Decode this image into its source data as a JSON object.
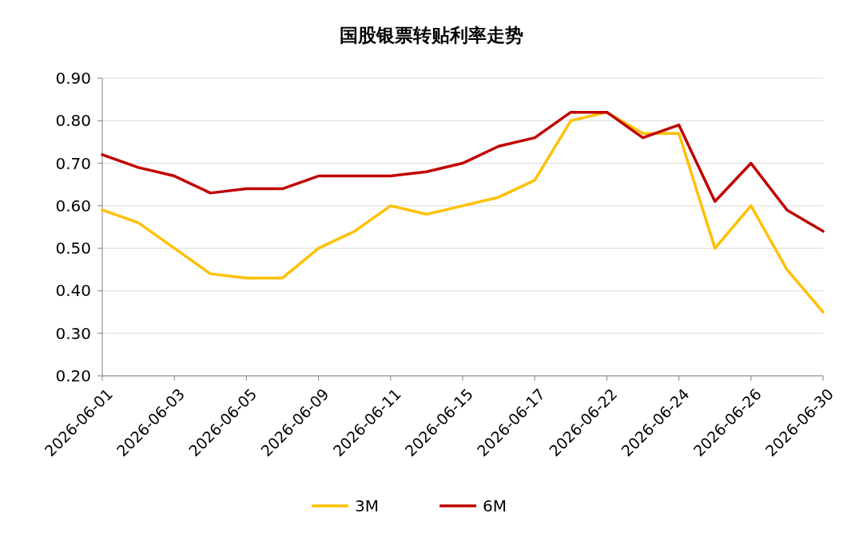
{
  "chart_data": {
    "type": "line",
    "title": "国股银票转贴利率走势",
    "categories": [
      "2026-06-01",
      null,
      "2026-06-03",
      null,
      "2026-06-05",
      null,
      "2026-06-09",
      null,
      "2026-06-11",
      null,
      "2026-06-15",
      null,
      "2026-06-17",
      null,
      "2026-06-22",
      null,
      "2026-06-24",
      null,
      "2026-06-26",
      null,
      "2026-06-30"
    ],
    "series": [
      {
        "name": "3M",
        "color": "#ffc000",
        "values": [
          0.59,
          0.56,
          0.5,
          0.44,
          0.43,
          0.43,
          0.5,
          0.54,
          0.6,
          0.58,
          0.6,
          0.62,
          0.66,
          0.8,
          0.82,
          0.77,
          0.77,
          0.5,
          0.6,
          0.45,
          0.35
        ]
      },
      {
        "name": "6M",
        "color": "#c00000",
        "values": [
          0.72,
          0.69,
          0.67,
          0.63,
          0.64,
          0.64,
          0.67,
          0.67,
          0.67,
          0.68,
          0.7,
          0.74,
          0.76,
          0.82,
          0.82,
          0.76,
          0.79,
          0.61,
          0.7,
          0.59,
          0.54
        ]
      }
    ],
    "ylim": [
      0.2,
      0.9
    ],
    "yticks": [
      {
        "value": 0.2,
        "label": "0.20"
      },
      {
        "value": 0.3,
        "label": "0.30"
      },
      {
        "value": 0.4,
        "label": "0.40"
      },
      {
        "value": 0.5,
        "label": "0.50"
      },
      {
        "value": 0.6,
        "label": "0.60"
      },
      {
        "value": 0.7,
        "label": "0.70"
      },
      {
        "value": 0.8,
        "label": "0.80"
      },
      {
        "value": 0.9,
        "label": "0.90"
      }
    ],
    "grid": "y",
    "legend": "bottom",
    "marker": "none",
    "line_style": "solid"
  }
}
